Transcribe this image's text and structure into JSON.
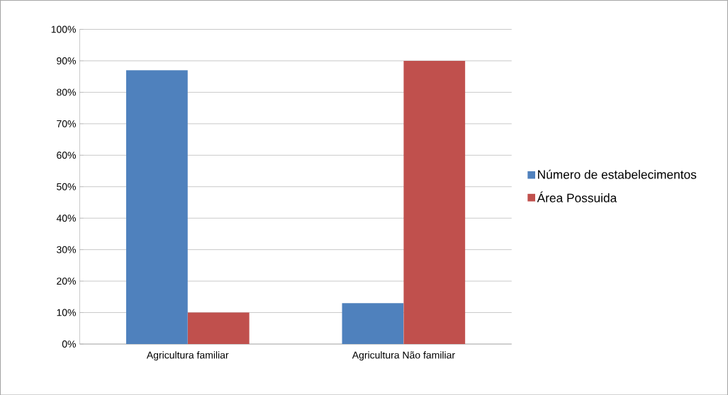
{
  "chart_data": {
    "type": "bar",
    "categories": [
      "Agricultura familiar",
      "Agricultura Não familiar"
    ],
    "series": [
      {
        "name": "Número de estabelecimentos",
        "color": "#4f81bd",
        "values": [
          87,
          13
        ]
      },
      {
        "name": "Área Possuida",
        "color": "#c0504d",
        "values": [
          10,
          90
        ]
      }
    ],
    "ylim": [
      0,
      100
    ],
    "yticks": [
      {
        "value": 0,
        "label": "0%"
      },
      {
        "value": 10,
        "label": "10%"
      },
      {
        "value": 20,
        "label": "20%"
      },
      {
        "value": 30,
        "label": "30%"
      },
      {
        "value": 40,
        "label": "40%"
      },
      {
        "value": 50,
        "label": "50%"
      },
      {
        "value": 60,
        "label": "60%"
      },
      {
        "value": 70,
        "label": "70%"
      },
      {
        "value": 80,
        "label": "80%"
      },
      {
        "value": 90,
        "label": "90%"
      },
      {
        "value": 100,
        "label": "100%"
      }
    ],
    "grid": "y",
    "legend": "right"
  }
}
